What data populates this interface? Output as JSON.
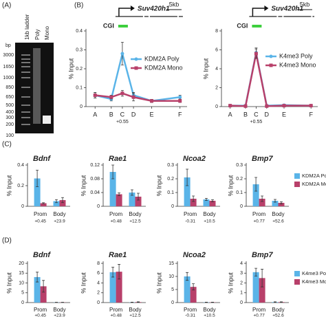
{
  "gel": {
    "panel": "(A)",
    "lanes": [
      "1kb ladder",
      "Poly",
      "Mono"
    ],
    "size_unit": "bp",
    "sizes": [
      "3000",
      "1650",
      "1000",
      "850",
      "650",
      "500",
      "400",
      "300",
      "200",
      "100"
    ]
  },
  "chart_data": [
    {
      "type": "line",
      "panel": "(B)",
      "region": "CGI",
      "gene": "Suv420h1",
      "scale": "5kb",
      "ylabel": "% Input",
      "categories": [
        "A",
        "B",
        "C",
        "D",
        "E",
        "F"
      ],
      "sublabels": [
        null,
        null,
        "+0.55",
        null,
        null,
        null
      ],
      "ylim": [
        0,
        0.4
      ],
      "yticks": [
        0,
        0.1,
        0.2,
        0.3,
        0.4
      ],
      "series": [
        {
          "name": "KDM2A Poly",
          "color": "#5ab4e8",
          "values": [
            0.06,
            0.04,
            0.28,
            0.06,
            0.03,
            0.05
          ],
          "errors": [
            0.015,
            0.01,
            0.06,
            0.015,
            0.008,
            0.01
          ]
        },
        {
          "name": "KDM2A Mono",
          "color": "#b8406a",
          "values": [
            0.06,
            0.05,
            0.07,
            0.05,
            0.03,
            0.03
          ],
          "errors": [
            0.015,
            0.01,
            0.015,
            0.02,
            0.008,
            0.008
          ]
        }
      ]
    },
    {
      "type": "line",
      "region": "CGI",
      "gene": "Suv420h1",
      "scale": "5kb",
      "ylabel": "% Input",
      "categories": [
        "A",
        "B",
        "C",
        "D",
        "E",
        "F"
      ],
      "sublabels": [
        null,
        null,
        "+0.55",
        null,
        null,
        null
      ],
      "ylim": [
        0,
        8
      ],
      "yticks": [
        0,
        2,
        4,
        6,
        8
      ],
      "series": [
        {
          "name": "K4me3 Poly",
          "color": "#5ab4e8",
          "values": [
            0.1,
            0.1,
            5.7,
            0.1,
            0.15,
            0.1
          ],
          "errors": [
            0.1,
            0.1,
            0.5,
            0.1,
            0.1,
            0.1
          ]
        },
        {
          "name": "K4me3 Mono",
          "color": "#b8406a",
          "values": [
            0.1,
            0.05,
            5.6,
            0.05,
            0.1,
            0.1
          ],
          "errors": [
            0.1,
            0.1,
            0.5,
            0.1,
            0.1,
            0.1
          ]
        }
      ]
    },
    {
      "type": "bar",
      "panel": "(C)",
      "title": "Bdnf",
      "ylabel": "% Input",
      "categories": [
        "Prom",
        "Body"
      ],
      "sublabels": [
        "+0.45",
        "+23.9"
      ],
      "ylim": [
        0,
        0.4
      ],
      "yticks": [
        0,
        0.2,
        0.4
      ],
      "series": [
        {
          "color": "#5ab4e8",
          "values": [
            0.27,
            0.05
          ],
          "errors": [
            0.08,
            0.015
          ]
        },
        {
          "color": "#b8406a",
          "values": [
            0.03,
            0.06
          ],
          "errors": [
            0.005,
            0.025
          ]
        }
      ]
    },
    {
      "type": "bar",
      "title": "Rae1",
      "ylabel": "% Input",
      "categories": [
        "Prom",
        "Body"
      ],
      "sublabels": [
        "+0.48",
        "+12.5"
      ],
      "ylim": [
        0,
        0.12
      ],
      "yticks": [
        0,
        0.04,
        0.08,
        0.12
      ],
      "series": [
        {
          "color": "#5ab4e8",
          "values": [
            0.1,
            0.04
          ],
          "errors": [
            0.02,
            0.008
          ]
        },
        {
          "color": "#b8406a",
          "values": [
            0.035,
            0.028
          ],
          "errors": [
            0.004,
            0.01
          ]
        }
      ]
    },
    {
      "type": "bar",
      "title": "Ncoa2",
      "ylabel": "% Input",
      "categories": [
        "Prom",
        "Body"
      ],
      "sublabels": [
        "-0.31",
        "+10.5"
      ],
      "ylim": [
        0,
        0.3
      ],
      "yticks": [
        0,
        0.1,
        0.2,
        0.3
      ],
      "series": [
        {
          "color": "#5ab4e8",
          "values": [
            0.21,
            0.05
          ],
          "errors": [
            0.06,
            0.008
          ]
        },
        {
          "color": "#b8406a",
          "values": [
            0.055,
            0.04
          ],
          "errors": [
            0.02,
            0.008
          ]
        }
      ]
    },
    {
      "type": "bar",
      "title": "Bmp7",
      "ylabel": "% Input",
      "categories": [
        "Prom",
        "Body"
      ],
      "sublabels": [
        "+0.77",
        "+52.6"
      ],
      "ylim": [
        0,
        0.3
      ],
      "yticks": [
        0,
        0.1,
        0.2,
        0.3
      ],
      "series": [
        {
          "name": "KDM2A Poly",
          "color": "#5ab4e8",
          "values": [
            0.16,
            0.04
          ],
          "errors": [
            0.05,
            0.01
          ]
        },
        {
          "name": "KDM2A Mono",
          "color": "#b8406a",
          "values": [
            0.055,
            0.025
          ],
          "errors": [
            0.02,
            0.008
          ]
        }
      ]
    },
    {
      "type": "bar",
      "panel": "(D)",
      "title": "Bdnf",
      "ylabel": "% Input",
      "categories": [
        "Prom",
        "Body"
      ],
      "sublabels": [
        "+0.45",
        "+23.9"
      ],
      "ylim": [
        0,
        20
      ],
      "yticks": [
        0,
        5,
        10,
        15,
        20
      ],
      "series": [
        {
          "color": "#5ab4e8",
          "values": [
            13,
            0.1
          ],
          "errors": [
            2.5,
            0.05
          ]
        },
        {
          "color": "#b8406a",
          "values": [
            8.3,
            0.1
          ],
          "errors": [
            3,
            0.05
          ]
        }
      ]
    },
    {
      "type": "bar",
      "title": "Rae1",
      "ylabel": "% Input",
      "categories": [
        "Prom",
        "Body"
      ],
      "sublabels": [
        "+0.48",
        "+12.5"
      ],
      "ylim": [
        0,
        8
      ],
      "yticks": [
        0,
        2,
        4,
        6,
        8
      ],
      "series": [
        {
          "color": "#5ab4e8",
          "values": [
            6.2,
            0.05
          ],
          "errors": [
            1,
            0.03
          ]
        },
        {
          "color": "#b8406a",
          "values": [
            6.3,
            0.1
          ],
          "errors": [
            1.5,
            0.05
          ]
        }
      ]
    },
    {
      "type": "bar",
      "title": "Ncoa2",
      "ylabel": "% Input",
      "categories": [
        "Prom",
        "Body"
      ],
      "sublabels": [
        "-0.31",
        "+10.5"
      ],
      "ylim": [
        0,
        15
      ],
      "yticks": [
        0,
        5,
        10,
        15
      ],
      "series": [
        {
          "color": "#5ab4e8",
          "values": [
            10,
            0.1
          ],
          "errors": [
            1.5,
            0.05
          ]
        },
        {
          "color": "#b8406a",
          "values": [
            6,
            0.1
          ],
          "errors": [
            1.2,
            0.05
          ]
        }
      ]
    },
    {
      "type": "bar",
      "title": "Bmp7",
      "ylabel": "% Input",
      "categories": [
        "Prom",
        "Body"
      ],
      "sublabels": [
        "+0.77",
        "+52.6"
      ],
      "ylim": [
        0,
        4
      ],
      "yticks": [
        0,
        1,
        2,
        3,
        4
      ],
      "series": [
        {
          "name": "K4me3 Poly",
          "color": "#5ab4e8",
          "values": [
            3.1,
            0.05
          ],
          "errors": [
            0.4,
            0.03
          ]
        },
        {
          "name": "K4me3 Mono",
          "color": "#b8406a",
          "values": [
            2.5,
            0.05
          ],
          "errors": [
            0.9,
            0.03
          ]
        }
      ]
    }
  ]
}
